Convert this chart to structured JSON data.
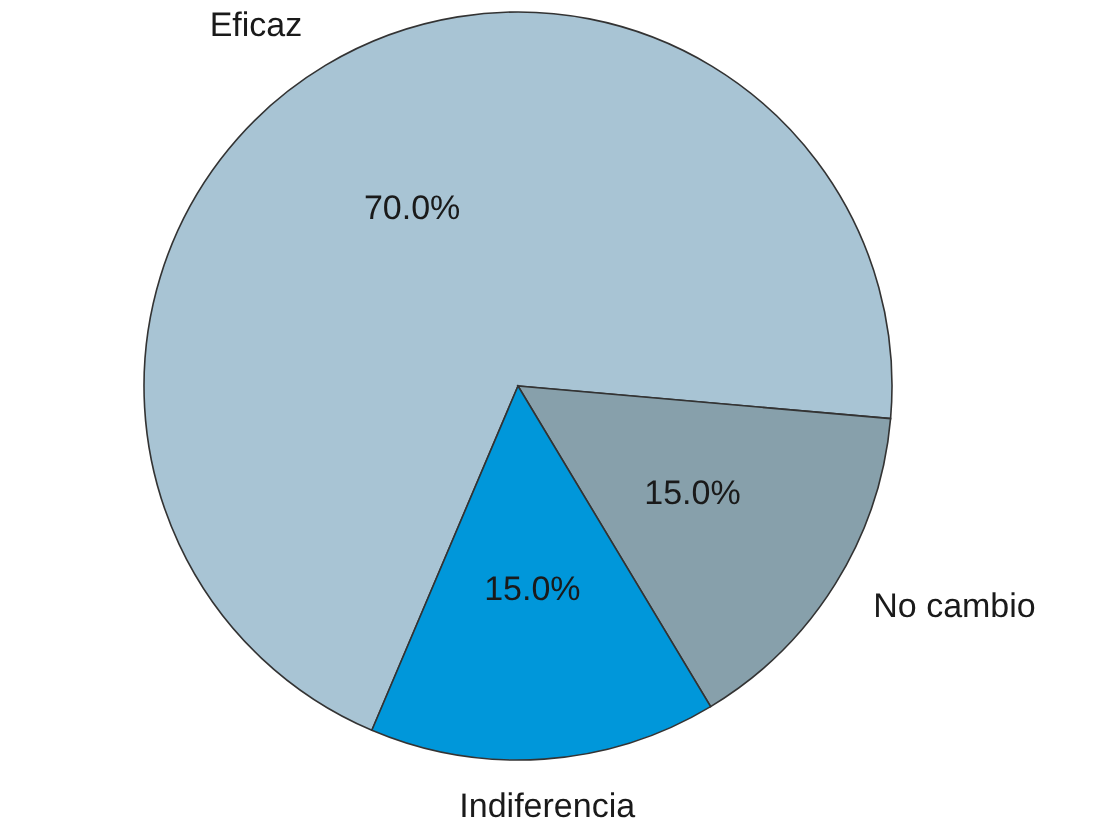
{
  "chart_data": {
    "type": "pie",
    "categories": [
      "Eficaz",
      "No cambio",
      "Indiferencia"
    ],
    "values": [
      70,
      15,
      15
    ],
    "value_labels": [
      "70.0%",
      "15.0%",
      "15.0%"
    ],
    "colors": [
      "#a8c4d4",
      "#87a0ab",
      "#0097da"
    ],
    "legend": false
  }
}
